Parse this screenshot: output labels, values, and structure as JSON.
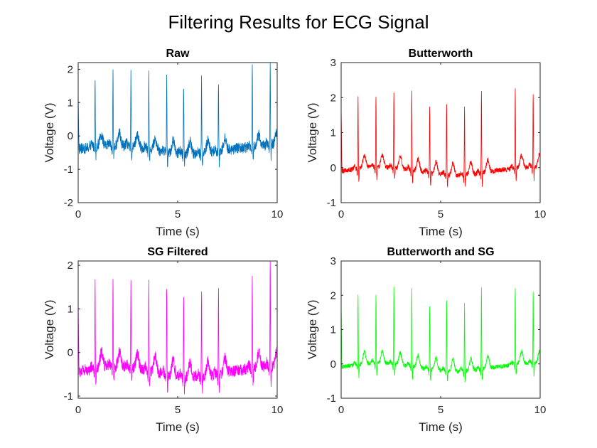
{
  "figure": {
    "title": "Filtering Results for ECG Signal"
  },
  "chart_data": [
    {
      "type": "line",
      "title": "Raw",
      "xlabel": "Time (s)",
      "ylabel": "Voltage (V)",
      "xlim": [
        0,
        10
      ],
      "ylim": [
        -2,
        2.2
      ],
      "xticks": [
        0,
        5,
        10
      ],
      "yticks": [
        -2,
        -1,
        0,
        1,
        2
      ],
      "baseline": -0.4,
      "noise": 0.16,
      "peak_values": [
        1.75,
        1.78,
        1.8,
        1.83,
        1.85,
        1.68,
        1.82,
        1.7,
        1.9,
        2.0
      ],
      "color": "#0072BD"
    },
    {
      "type": "line",
      "title": "Butterworth",
      "xlabel": "Time (s)",
      "ylabel": "Voltage (V)",
      "xlim": [
        0,
        10
      ],
      "ylim": [
        -1,
        3
      ],
      "xticks": [
        0,
        5,
        10
      ],
      "yticks": [
        -1,
        0,
        1,
        2,
        3
      ],
      "baseline": -0.1,
      "noise": 0.07,
      "peak_values": [
        1.9,
        1.95,
        2.1,
        2.2,
        1.8,
        1.9,
        1.85,
        2.25,
        2.15,
        2.0
      ],
      "color": "#FF0000"
    },
    {
      "type": "line",
      "title": "SG Filtered",
      "xlabel": "Time (s)",
      "ylabel": "Voltage (V)",
      "xlim": [
        0,
        10
      ],
      "ylim": [
        -1.05,
        2.1
      ],
      "xticks": [
        0,
        5,
        10
      ],
      "yticks": [
        -1,
        0,
        1,
        2
      ],
      "baseline": -0.45,
      "noise": 0.13,
      "peak_values": [
        1.55,
        1.55,
        1.55,
        1.55,
        1.58,
        1.43,
        1.6,
        1.5,
        1.68,
        2.02
      ],
      "color": "#FF00FF"
    },
    {
      "type": "line",
      "title": "Butterworth and SG",
      "xlabel": "Time (s)",
      "ylabel": "Voltage (V)",
      "xlim": [
        0,
        10
      ],
      "ylim": [
        -1,
        3
      ],
      "xticks": [
        0,
        5,
        10
      ],
      "yticks": [
        -1,
        0,
        1,
        2,
        3
      ],
      "baseline": -0.1,
      "noise": 0.06,
      "peak_values": [
        1.9,
        1.95,
        2.1,
        2.2,
        1.8,
        1.9,
        1.85,
        2.25,
        2.15,
        2.0
      ],
      "color": "#00FF00"
    }
  ]
}
